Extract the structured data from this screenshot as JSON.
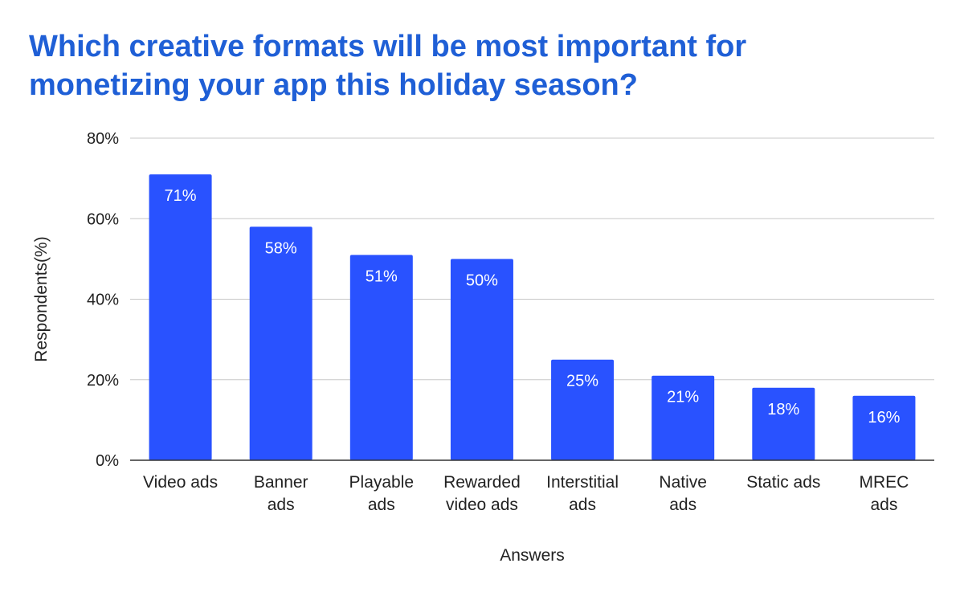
{
  "chart_data": {
    "type": "bar",
    "title_lines": [
      "Which creative formats will be most important for",
      "monetizing your app this holiday season?"
    ],
    "xlabel": "Answers",
    "ylabel": "Respondents(%)",
    "categories": [
      [
        "Video ads"
      ],
      [
        "Banner",
        "ads"
      ],
      [
        "Playable",
        "ads"
      ],
      [
        "Rewarded",
        "video ads"
      ],
      [
        "Interstitial",
        "ads"
      ],
      [
        "Native",
        "ads"
      ],
      [
        "Static ads"
      ],
      [
        "MREC",
        "ads"
      ]
    ],
    "values": [
      71,
      58,
      51,
      50,
      25,
      21,
      18,
      16
    ],
    "data_labels": [
      "71%",
      "58%",
      "51%",
      "50%",
      "25%",
      "21%",
      "18%",
      "16%"
    ],
    "ylim": [
      0,
      80
    ],
    "yticks": [
      0,
      20,
      40,
      60,
      80
    ],
    "ytick_labels": [
      "0%",
      "20%",
      "40%",
      "60%",
      "80%"
    ],
    "grid": true,
    "colors": {
      "bar": "#2952ff",
      "title": "#1f5fd6",
      "grid": "#c8c8c8",
      "axis": "#333333",
      "text": "#222222",
      "label": "#ffffff"
    }
  }
}
